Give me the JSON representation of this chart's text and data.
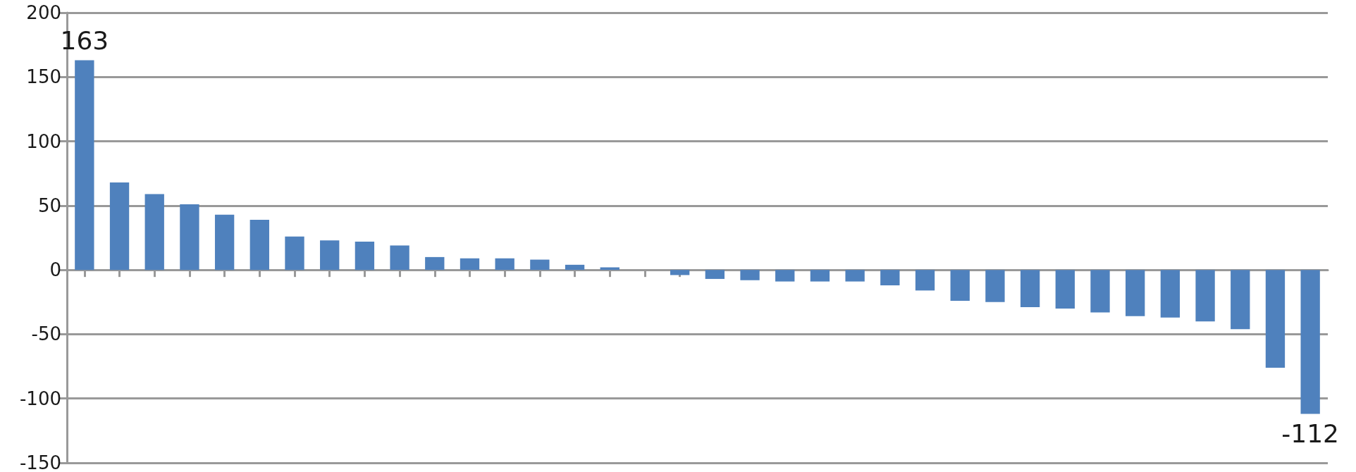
{
  "chart_data": {
    "type": "bar",
    "categories": [
      null,
      null,
      null,
      null,
      null,
      null,
      null,
      null,
      null,
      null,
      null,
      null,
      null,
      null,
      null,
      null,
      null,
      null,
      null,
      null,
      null,
      null,
      null,
      null,
      null,
      null,
      null,
      null,
      null,
      null,
      null,
      null,
      null,
      null,
      null,
      null
    ],
    "values": [
      163,
      68,
      59,
      51,
      43,
      39,
      26,
      23,
      22,
      19,
      10,
      9,
      9,
      8,
      4,
      2,
      0,
      -4,
      -7,
      -8,
      -9,
      -9,
      -9,
      -12,
      -16,
      -24,
      -25,
      -29,
      -30,
      -33,
      -36,
      -37,
      -40,
      -46,
      -76,
      -112
    ],
    "value_labels": [
      "163",
      null,
      null,
      null,
      null,
      null,
      null,
      null,
      null,
      null,
      null,
      null,
      null,
      null,
      null,
      null,
      null,
      null,
      null,
      null,
      null,
      null,
      null,
      null,
      null,
      null,
      null,
      null,
      null,
      null,
      null,
      null,
      null,
      null,
      null,
      "-112"
    ],
    "color": "#4f81bd",
    "ylim": [
      -150,
      200
    ],
    "yticks": [
      -150,
      -100,
      -50,
      0,
      50,
      100,
      150,
      200
    ],
    "grid": "y"
  }
}
